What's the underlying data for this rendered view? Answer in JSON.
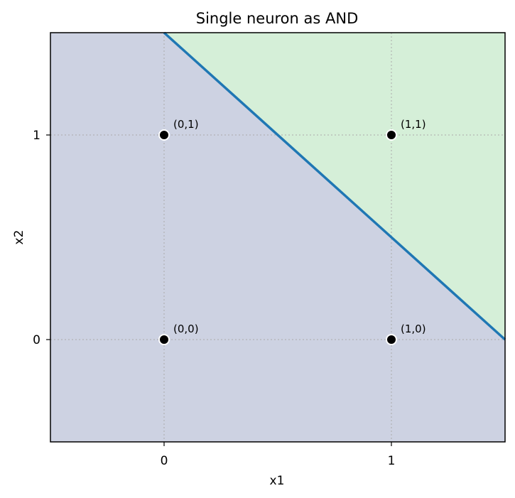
{
  "chart_data": {
    "type": "scatter",
    "title": "Single neuron as AND",
    "xlabel": "x1",
    "ylabel": "x2",
    "xlim": [
      -0.5,
      1.5
    ],
    "ylim": [
      -0.5,
      1.5
    ],
    "xticks": [
      0,
      1
    ],
    "yticks": [
      0,
      1
    ],
    "grid": true,
    "points": [
      {
        "x": 0,
        "y": 0,
        "label": "(0,0)"
      },
      {
        "x": 1,
        "y": 0,
        "label": "(1,0)"
      },
      {
        "x": 0,
        "y": 1,
        "label": "(0,1)"
      },
      {
        "x": 1,
        "y": 1,
        "label": "(1,1)"
      }
    ],
    "decision_boundary": {
      "equation": "x1 + x2 = 1.5",
      "points": [
        [
          0,
          1.5
        ],
        [
          1.5,
          0
        ]
      ]
    },
    "colors": {
      "region_negative": "#cdd2e2",
      "region_positive": "#d5efd8",
      "boundary_line": "#1f77b4",
      "points": "#000000"
    }
  }
}
